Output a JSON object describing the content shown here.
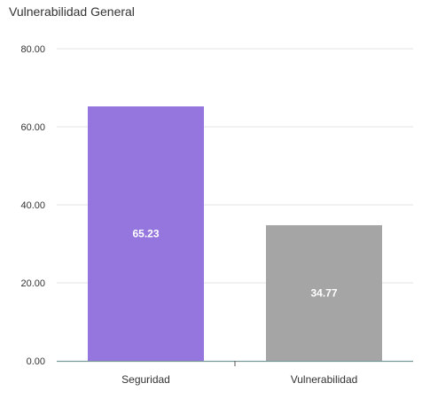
{
  "chart_data": {
    "type": "bar",
    "title": "Vulnerabilidad General",
    "categories": [
      "Seguridad",
      "Vulnerabilidad"
    ],
    "values": [
      65.23,
      34.77
    ],
    "value_labels": [
      "65.23",
      "34.77"
    ],
    "colors": [
      "#9575DE",
      "#A5A5A5"
    ],
    "ylim": [
      0,
      80
    ],
    "yticks": [
      0,
      20,
      40,
      60,
      80
    ],
    "ytick_labels": [
      "0.00",
      "20.00",
      "40.00",
      "60.00",
      "80.00"
    ],
    "grid": true,
    "legend": "none"
  }
}
